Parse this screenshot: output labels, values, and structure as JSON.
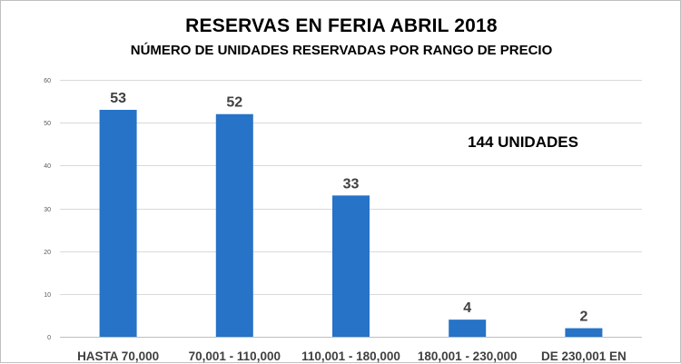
{
  "chart_data": {
    "type": "bar",
    "title": "RESERVAS EN FERIA ABRIL 2018",
    "subtitle": "NÚMERO DE UNIDADES RESERVADAS POR RANGO DE PRECIO",
    "categories": [
      "HASTA 70,000",
      "70,001 - 110,000",
      "110,001 - 180,000",
      "180,001 - 230,000",
      "DE 230,001 EN"
    ],
    "values": [
      53,
      52,
      33,
      4,
      2
    ],
    "ylim": [
      0,
      60
    ],
    "yticks": [
      0,
      10,
      20,
      30,
      40,
      50,
      60
    ],
    "grid": true,
    "legend": "none",
    "annotation": "144 UNIDADES",
    "bar_color": "#2673c8",
    "grid_color": "#d9d9d9"
  }
}
